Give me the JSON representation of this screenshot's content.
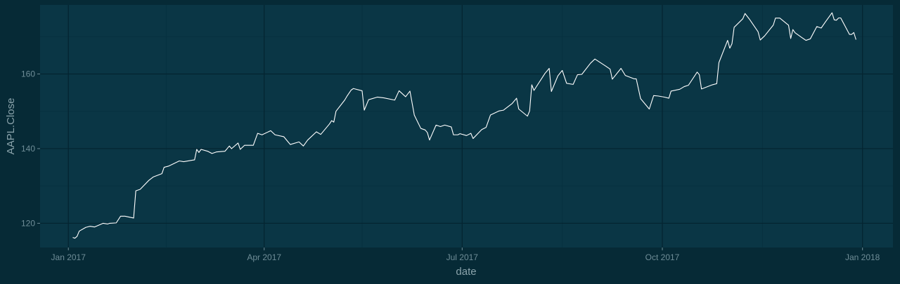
{
  "colors": {
    "background": "#062a36",
    "panel": "#0a3645",
    "grid_major": "#042430",
    "grid_minor": "#073140",
    "line": "#ffffff",
    "tick_text": "#6f8d97",
    "axis_title": "#8aa3ab"
  },
  "chart_data": {
    "type": "line",
    "title": "",
    "xlabel": "date",
    "ylabel": "AAPL.Close",
    "x_type": "date",
    "xlim": [
      "2016-12-19",
      "2018-01-15"
    ],
    "ylim": [
      113.5,
      178.5
    ],
    "grid": true,
    "legend": "none",
    "x_ticks": [
      {
        "date": "2017-01-01",
        "label": "Jan 2017"
      },
      {
        "date": "2017-04-01",
        "label": "Apr 2017"
      },
      {
        "date": "2017-07-01",
        "label": "Jul 2017"
      },
      {
        "date": "2017-10-01",
        "label": "Oct 2017"
      },
      {
        "date": "2018-01-01",
        "label": "Jan 2018"
      }
    ],
    "x_minor_ticks": [
      "2017-02-15",
      "2017-05-16",
      "2017-08-16",
      "2017-11-16"
    ],
    "y_ticks": [
      120,
      140,
      160
    ],
    "y_minor_ticks": [
      130,
      150,
      170
    ],
    "series": [
      {
        "points": [
          [
            "2017-01-03",
            116.2
          ],
          [
            "2017-01-04",
            116.0
          ],
          [
            "2017-01-05",
            116.5
          ],
          [
            "2017-01-06",
            117.9
          ],
          [
            "2017-01-09",
            118.9
          ],
          [
            "2017-01-11",
            119.2
          ],
          [
            "2017-01-13",
            119.0
          ],
          [
            "2017-01-17",
            120.0
          ],
          [
            "2017-01-19",
            119.8
          ],
          [
            "2017-01-20",
            120.0
          ],
          [
            "2017-01-23",
            120.1
          ],
          [
            "2017-01-25",
            121.9
          ],
          [
            "2017-01-27",
            121.9
          ],
          [
            "2017-01-31",
            121.4
          ],
          [
            "2017-02-01",
            128.7
          ],
          [
            "2017-02-03",
            129.1
          ],
          [
            "2017-02-07",
            131.5
          ],
          [
            "2017-02-09",
            132.4
          ],
          [
            "2017-02-13",
            133.3
          ],
          [
            "2017-02-14",
            135.0
          ],
          [
            "2017-02-16",
            135.3
          ],
          [
            "2017-02-21",
            136.7
          ],
          [
            "2017-02-23",
            136.5
          ],
          [
            "2017-02-27",
            136.9
          ],
          [
            "2017-02-28",
            136.99
          ],
          [
            "2017-03-01",
            139.8
          ],
          [
            "2017-03-02",
            138.96
          ],
          [
            "2017-03-03",
            139.8
          ],
          [
            "2017-03-06",
            139.3
          ],
          [
            "2017-03-08",
            138.7
          ],
          [
            "2017-03-10",
            139.1
          ],
          [
            "2017-03-14",
            139.3
          ],
          [
            "2017-03-16",
            140.7
          ],
          [
            "2017-03-17",
            139.99
          ],
          [
            "2017-03-20",
            141.5
          ],
          [
            "2017-03-21",
            139.8
          ],
          [
            "2017-03-23",
            140.9
          ],
          [
            "2017-03-27",
            140.9
          ],
          [
            "2017-03-29",
            144.1
          ],
          [
            "2017-03-31",
            143.7
          ],
          [
            "2017-04-04",
            144.8
          ],
          [
            "2017-04-06",
            143.7
          ],
          [
            "2017-04-10",
            143.2
          ],
          [
            "2017-04-12",
            141.8
          ],
          [
            "2017-04-13",
            141.1
          ],
          [
            "2017-04-17",
            141.8
          ],
          [
            "2017-04-19",
            140.7
          ],
          [
            "2017-04-21",
            142.3
          ],
          [
            "2017-04-25",
            144.5
          ],
          [
            "2017-04-27",
            143.8
          ],
          [
            "2017-05-01",
            146.6
          ],
          [
            "2017-05-02",
            147.5
          ],
          [
            "2017-05-03",
            147.1
          ],
          [
            "2017-05-04",
            150.0
          ],
          [
            "2017-05-08",
            153.0
          ],
          [
            "2017-05-09",
            153.99
          ],
          [
            "2017-05-11",
            155.7
          ],
          [
            "2017-05-12",
            156.1
          ],
          [
            "2017-05-16",
            155.5
          ],
          [
            "2017-05-17",
            150.3
          ],
          [
            "2017-05-19",
            153.1
          ],
          [
            "2017-05-23",
            153.8
          ],
          [
            "2017-05-26",
            153.6
          ],
          [
            "2017-05-31",
            153.0
          ],
          [
            "2017-06-02",
            155.5
          ],
          [
            "2017-06-05",
            153.9
          ],
          [
            "2017-06-07",
            155.4
          ],
          [
            "2017-06-09",
            148.98
          ],
          [
            "2017-06-12",
            145.4
          ],
          [
            "2017-06-14",
            145.0
          ],
          [
            "2017-06-15",
            144.3
          ],
          [
            "2017-06-16",
            142.3
          ],
          [
            "2017-06-19",
            146.3
          ],
          [
            "2017-06-21",
            145.9
          ],
          [
            "2017-06-23",
            146.3
          ],
          [
            "2017-06-26",
            145.8
          ],
          [
            "2017-06-27",
            143.7
          ],
          [
            "2017-06-29",
            143.7
          ],
          [
            "2017-06-30",
            144.0
          ],
          [
            "2017-07-03",
            143.5
          ],
          [
            "2017-07-05",
            144.1
          ],
          [
            "2017-07-06",
            142.7
          ],
          [
            "2017-07-10",
            145.1
          ],
          [
            "2017-07-12",
            145.7
          ],
          [
            "2017-07-14",
            149.0
          ],
          [
            "2017-07-18",
            150.1
          ],
          [
            "2017-07-20",
            150.3
          ],
          [
            "2017-07-24",
            152.1
          ],
          [
            "2017-07-26",
            153.5
          ],
          [
            "2017-07-27",
            150.6
          ],
          [
            "2017-07-31",
            148.7
          ],
          [
            "2017-08-01",
            150.1
          ],
          [
            "2017-08-02",
            157.1
          ],
          [
            "2017-08-03",
            155.6
          ],
          [
            "2017-08-08",
            160.1
          ],
          [
            "2017-08-10",
            161.5
          ],
          [
            "2017-08-11",
            155.3
          ],
          [
            "2017-08-14",
            159.5
          ],
          [
            "2017-08-16",
            160.95
          ],
          [
            "2017-08-18",
            157.5
          ],
          [
            "2017-08-21",
            157.2
          ],
          [
            "2017-08-23",
            159.8
          ],
          [
            "2017-08-25",
            159.9
          ],
          [
            "2017-08-29",
            162.9
          ],
          [
            "2017-08-31",
            164.0
          ],
          [
            "2017-09-05",
            162.1
          ],
          [
            "2017-09-07",
            161.3
          ],
          [
            "2017-09-08",
            158.6
          ],
          [
            "2017-09-12",
            161.5
          ],
          [
            "2017-09-14",
            159.6
          ],
          [
            "2017-09-18",
            158.7
          ],
          [
            "2017-09-19",
            158.7
          ],
          [
            "2017-09-21",
            153.4
          ],
          [
            "2017-09-25",
            150.6
          ],
          [
            "2017-09-27",
            154.2
          ],
          [
            "2017-09-29",
            154.1
          ],
          [
            "2017-10-02",
            153.8
          ],
          [
            "2017-10-04",
            153.5
          ],
          [
            "2017-10-05",
            155.4
          ],
          [
            "2017-10-09",
            155.9
          ],
          [
            "2017-10-11",
            156.6
          ],
          [
            "2017-10-13",
            156.99
          ],
          [
            "2017-10-17",
            160.5
          ],
          [
            "2017-10-18",
            159.8
          ],
          [
            "2017-10-19",
            155.98
          ],
          [
            "2017-10-24",
            157.1
          ],
          [
            "2017-10-26",
            157.4
          ],
          [
            "2017-10-27",
            163.05
          ],
          [
            "2017-10-31",
            169.0
          ],
          [
            "2017-11-01",
            166.9
          ],
          [
            "2017-11-02",
            168.1
          ],
          [
            "2017-11-03",
            172.5
          ],
          [
            "2017-11-07",
            174.8
          ],
          [
            "2017-11-08",
            176.2
          ],
          [
            "2017-11-10",
            174.7
          ],
          [
            "2017-11-14",
            171.3
          ],
          [
            "2017-11-15",
            169.1
          ],
          [
            "2017-11-17",
            170.2
          ],
          [
            "2017-11-21",
            173.1
          ],
          [
            "2017-11-22",
            174.96
          ],
          [
            "2017-11-24",
            174.97
          ],
          [
            "2017-11-28",
            173.07
          ],
          [
            "2017-11-29",
            169.5
          ],
          [
            "2017-11-30",
            171.9
          ],
          [
            "2017-12-01",
            171.05
          ],
          [
            "2017-12-04",
            169.8
          ],
          [
            "2017-12-06",
            169.0
          ],
          [
            "2017-12-08",
            169.4
          ],
          [
            "2017-12-11",
            172.7
          ],
          [
            "2017-12-13",
            172.3
          ],
          [
            "2017-12-15",
            173.97
          ],
          [
            "2017-12-18",
            176.4
          ],
          [
            "2017-12-19",
            174.5
          ],
          [
            "2017-12-20",
            174.4
          ],
          [
            "2017-12-21",
            175.0
          ],
          [
            "2017-12-22",
            175.0
          ],
          [
            "2017-12-26",
            170.6
          ],
          [
            "2017-12-27",
            170.6
          ],
          [
            "2017-12-28",
            171.1
          ],
          [
            "2017-12-29",
            169.2
          ]
        ]
      }
    ]
  }
}
